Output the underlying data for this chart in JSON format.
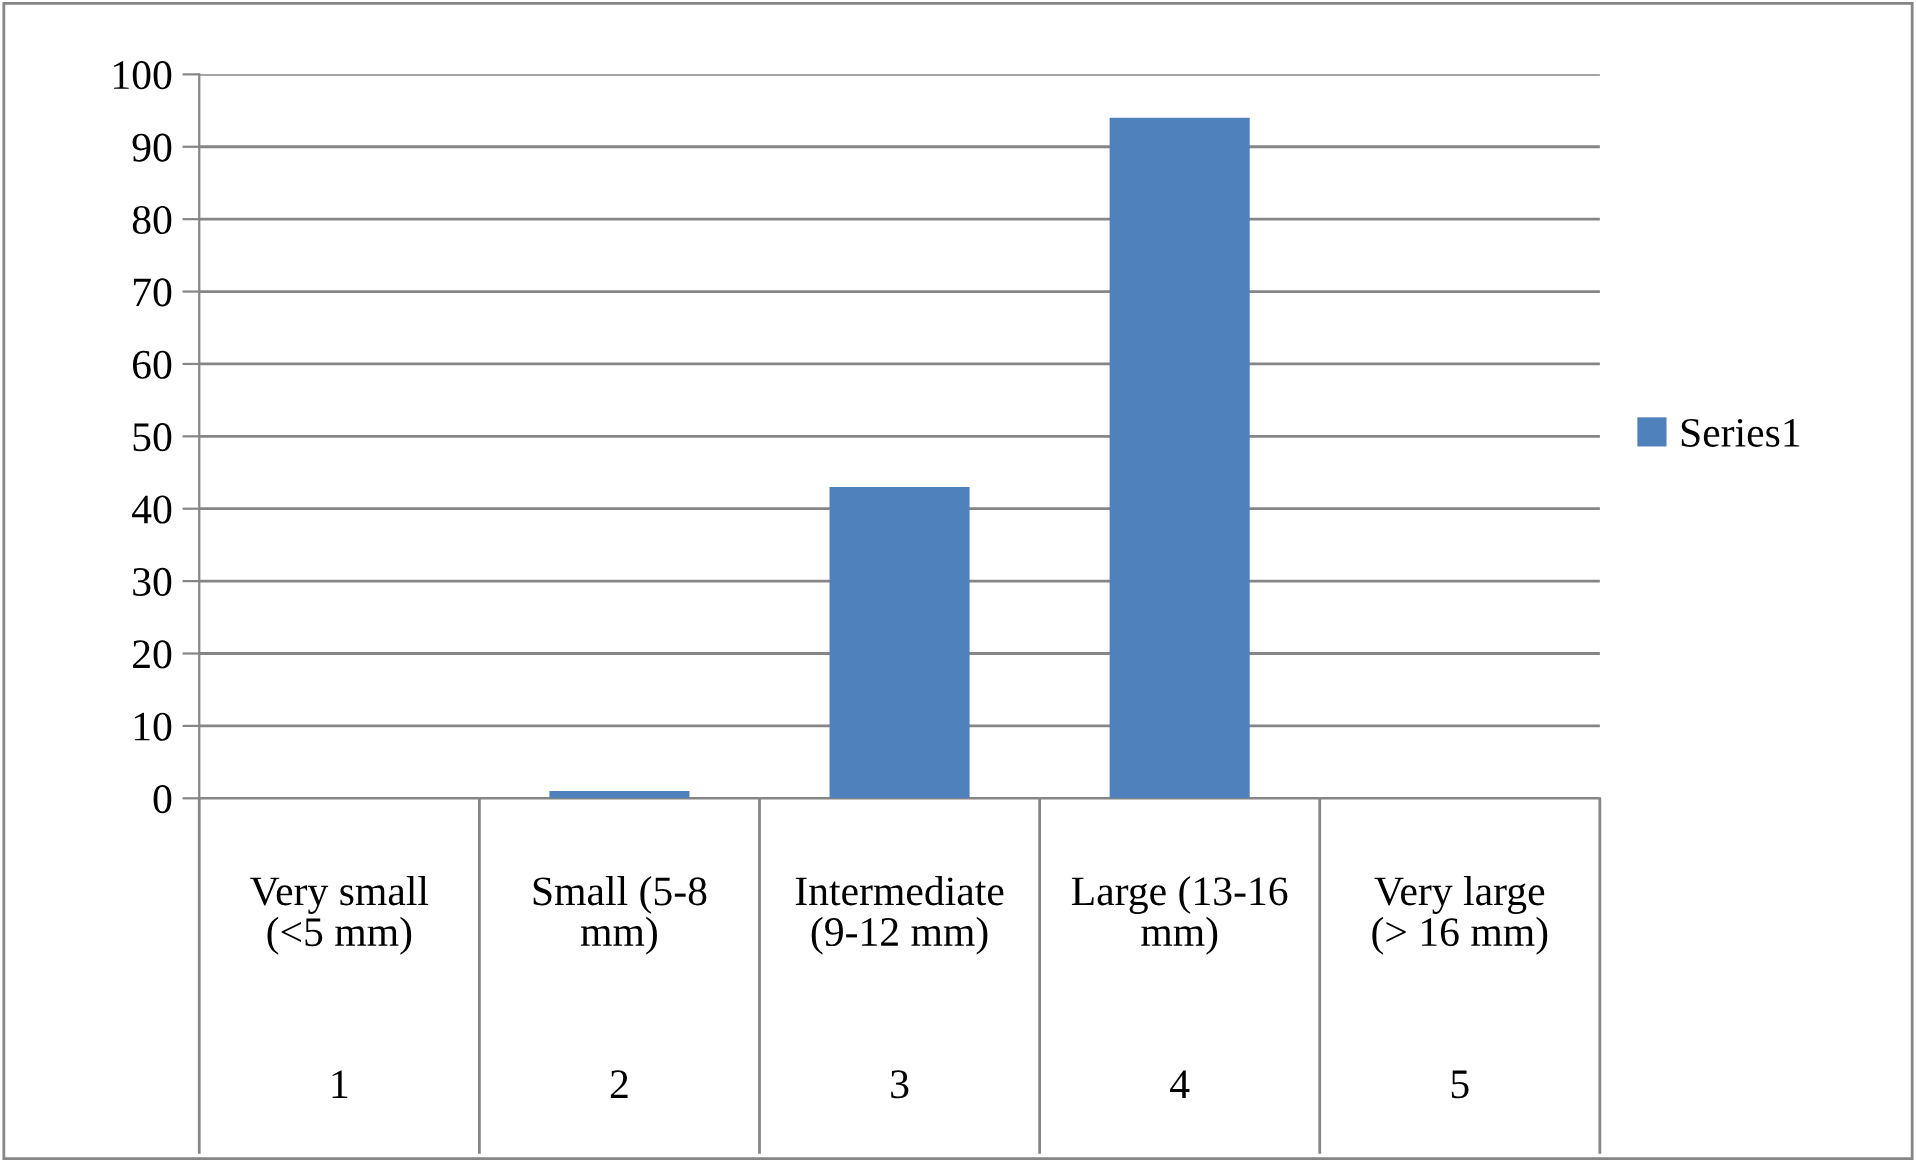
{
  "chart_data": {
    "type": "bar",
    "categories": [
      "Very small\n(<5 mm)",
      "Small (5-8\nmm)",
      "Intermediate\n(9-12 mm)",
      "Large (13-16\nmm)",
      "Very large\n(> 16 mm)"
    ],
    "series": [
      {
        "name": "Series1",
        "color": "#4f81bd",
        "values": [
          0,
          1,
          43,
          94,
          0
        ]
      }
    ],
    "annotations": [
      "1",
      "2",
      "3",
      "4",
      "5"
    ],
    "ylim": [
      0,
      100
    ],
    "yticks": [
      0,
      10,
      20,
      30,
      40,
      50,
      60,
      70,
      80,
      90,
      100
    ],
    "grid": "y",
    "legend": "right"
  }
}
